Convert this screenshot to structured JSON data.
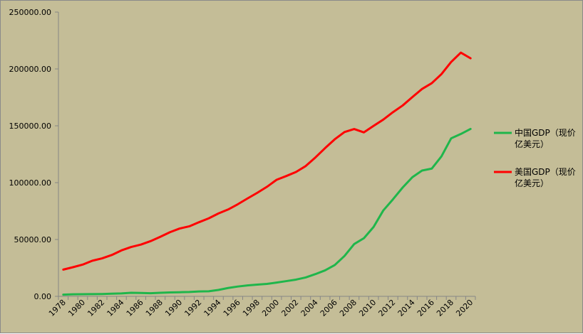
{
  "chart_data": {
    "type": "line",
    "x": [
      "1978",
      "1979",
      "1980",
      "1981",
      "1982",
      "1983",
      "1984",
      "1985",
      "1986",
      "1987",
      "1988",
      "1989",
      "1990",
      "1991",
      "1992",
      "1993",
      "1994",
      "1995",
      "1996",
      "1997",
      "1998",
      "1999",
      "2000",
      "2001",
      "2002",
      "2003",
      "2004",
      "2005",
      "2006",
      "2007",
      "2008",
      "2009",
      "2010",
      "2011",
      "2012",
      "2013",
      "2014",
      "2015",
      "2016",
      "2017",
      "2018",
      "2019",
      "2020"
    ],
    "x_tick_labels": [
      "1978",
      "1980",
      "1982",
      "1984",
      "1986",
      "1988",
      "1990",
      "1992",
      "1994",
      "1996",
      "1998",
      "2000",
      "2002",
      "2004",
      "2006",
      "2008",
      "2010",
      "2012",
      "2014",
      "2016",
      "2018",
      "2020"
    ],
    "y_tick_labels": [
      "0.00",
      "50000.00",
      "100000.00",
      "150000.00",
      "200000.00",
      "250000.00"
    ],
    "ylim": [
      0,
      250000
    ],
    "grid": false,
    "legend_position": "right",
    "series": [
      {
        "name_lines": [
          "中国GDP（现价",
          "亿美元）"
        ],
        "color": "#1fb64b",
        "values": [
          1495,
          1783,
          1911,
          1958,
          2050,
          2307,
          2599,
          3094,
          3008,
          2730,
          3123,
          3477,
          3608,
          3834,
          4269,
          4447,
          5644,
          7340,
          8637,
          9616,
          10292,
          10943,
          12113,
          13394,
          14705,
          16603,
          19553,
          22860,
          27521,
          35522,
          45982,
          51101,
          61006,
          75515,
          85322,
          95704,
          104757,
          110616,
          112333,
          123104,
          138948,
          142799,
          147228
        ]
      },
      {
        "name_lines": [
          "美国GDP（现价",
          "亿美元）"
        ],
        "color": "#ff0000",
        "values": [
          23518,
          25628,
          27900,
          31333,
          33428,
          36341,
          40407,
          43389,
          45499,
          48552,
          52361,
          56417,
          59631,
          61582,
          65203,
          68588,
          72877,
          76399,
          81002,
          86085,
          91023,
          96315,
          102510,
          105819,
          109365,
          114580,
          122137,
          130369,
          138149,
          144518,
          147128,
          144187,
          149921,
          155426,
          161970,
          167848,
          175217,
          182383,
          187450,
          195430,
          206118,
          214332,
          209366
        ]
      }
    ]
  }
}
